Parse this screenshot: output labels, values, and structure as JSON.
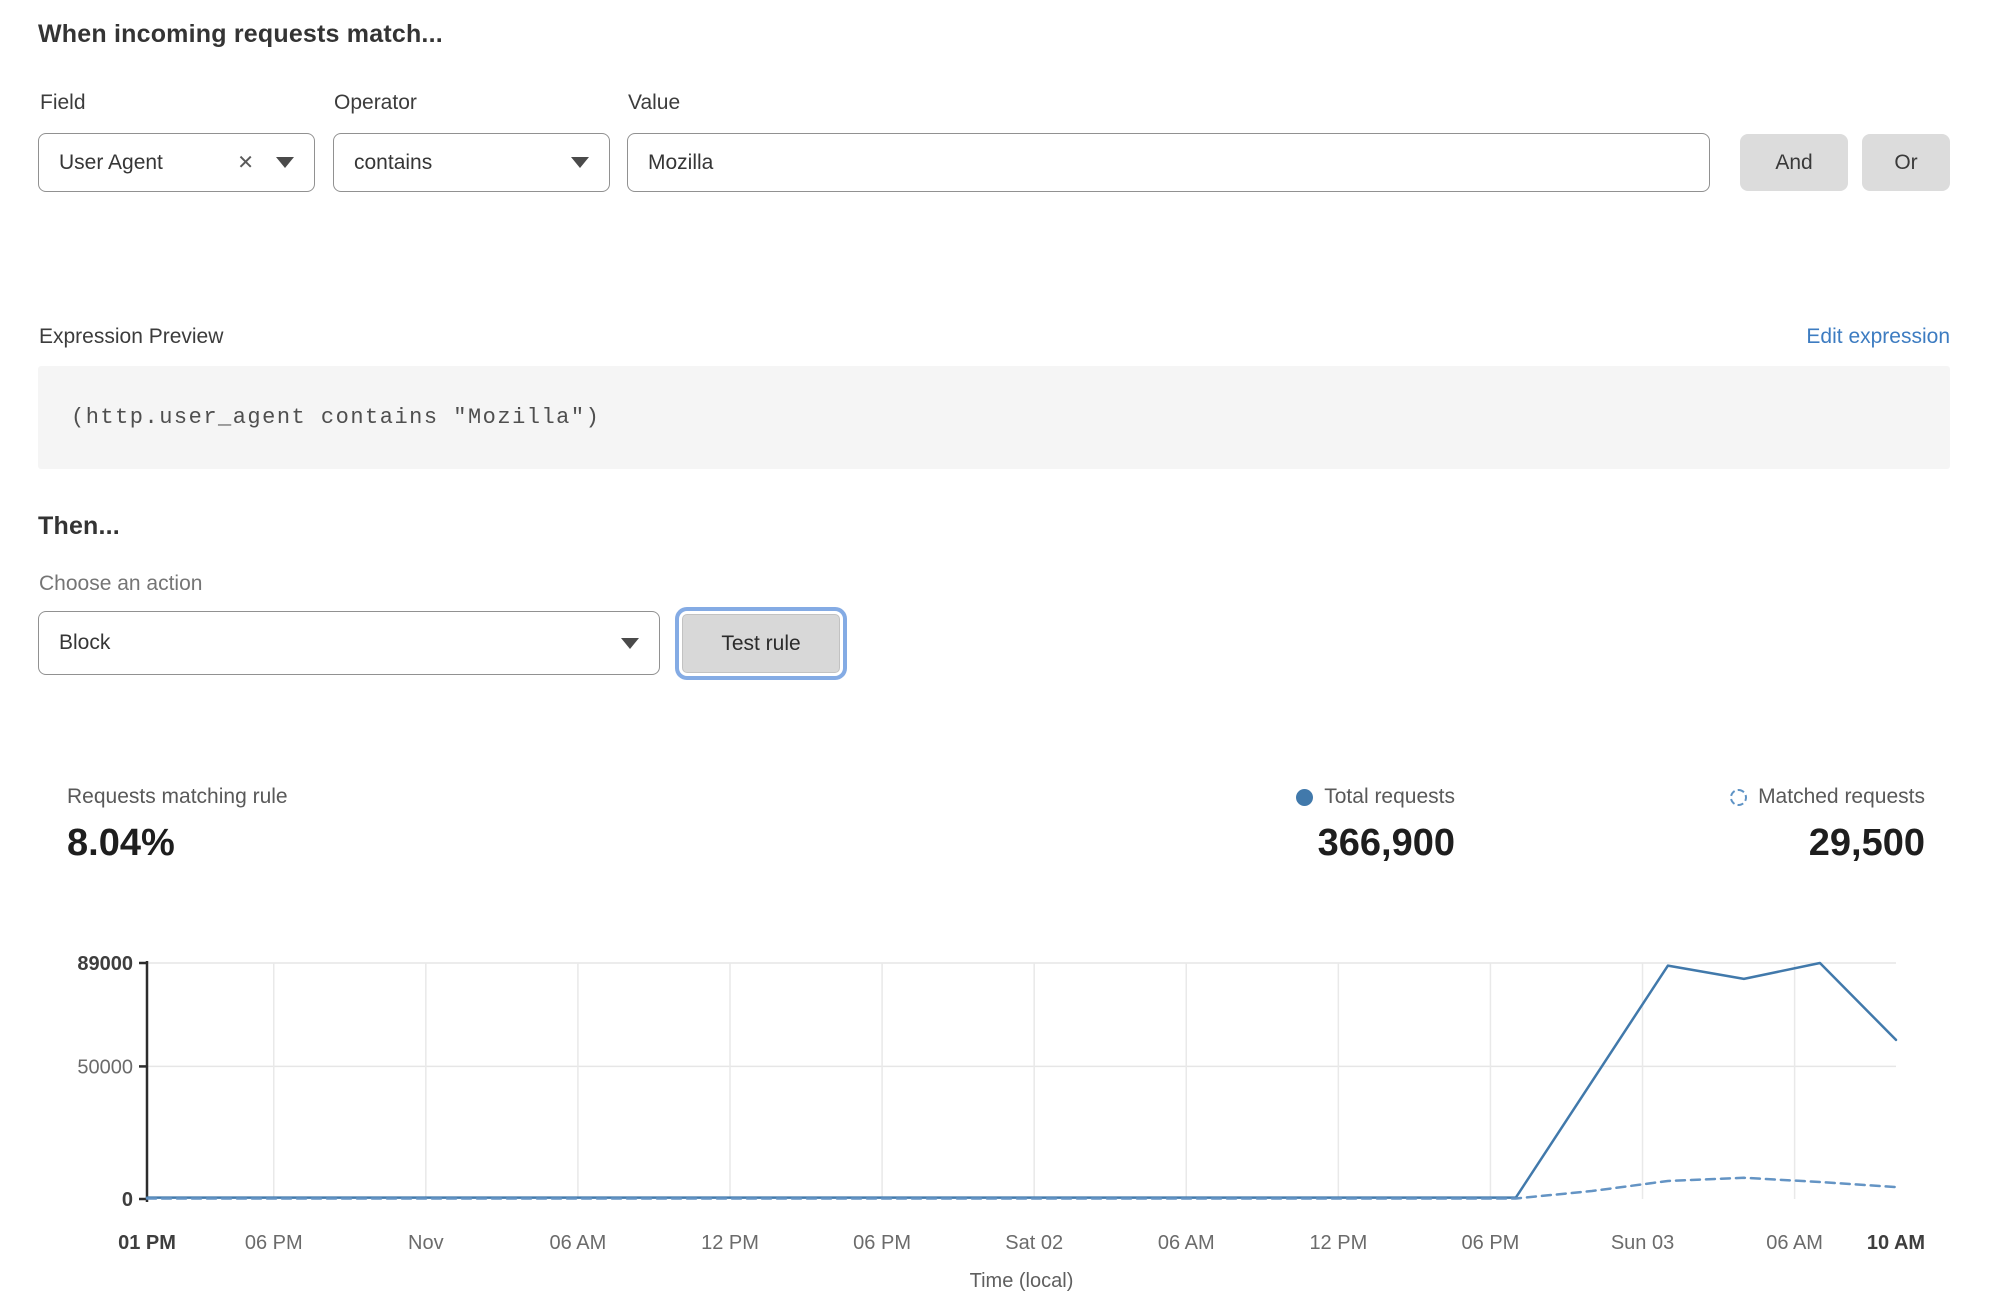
{
  "rule_builder": {
    "heading": "When incoming requests match...",
    "field": {
      "label": "Field",
      "value": "User Agent",
      "clear_icon": "✕"
    },
    "operator": {
      "label": "Operator",
      "value": "contains"
    },
    "value": {
      "label": "Value",
      "value": "Mozilla"
    },
    "and_button": "And",
    "or_button": "Or"
  },
  "expression": {
    "label": "Expression Preview",
    "edit_link": "Edit expression",
    "code": "(http.user_agent contains \"Mozilla\")"
  },
  "then_section": {
    "heading": "Then...",
    "action_label": "Choose an action",
    "action_value": "Block",
    "test_button": "Test rule"
  },
  "stats": {
    "matching": {
      "label": "Requests matching rule",
      "value": "8.04%"
    },
    "total": {
      "label": "Total requests",
      "value": "366,900"
    },
    "matched": {
      "label": "Matched requests",
      "value": "29,500"
    }
  },
  "chart_data": {
    "type": "line",
    "title": "",
    "xlabel": "Time (local)",
    "ylabel": "",
    "ylim": [
      0,
      89000
    ],
    "x_range_hours": [
      0,
      69
    ],
    "x_unit": "hours from Fri 01 PM to Sun 10 AM",
    "grid": true,
    "legend_position": "above-chart-right",
    "y_ticks": [
      {
        "value": 0,
        "label": "0",
        "bold": true
      },
      {
        "value": 50000,
        "label": "50000",
        "bold": false
      },
      {
        "value": 89000,
        "label": "89000",
        "bold": true
      }
    ],
    "x_ticks": [
      {
        "hour": 0,
        "label": "01 PM",
        "bold": true
      },
      {
        "hour": 5,
        "label": "06 PM",
        "bold": false
      },
      {
        "hour": 11,
        "label": "Nov",
        "bold": false
      },
      {
        "hour": 17,
        "label": "06 AM",
        "bold": false
      },
      {
        "hour": 23,
        "label": "12 PM",
        "bold": false
      },
      {
        "hour": 29,
        "label": "06 PM",
        "bold": false
      },
      {
        "hour": 35,
        "label": "Sat 02",
        "bold": false
      },
      {
        "hour": 41,
        "label": "06 AM",
        "bold": false
      },
      {
        "hour": 47,
        "label": "12 PM",
        "bold": false
      },
      {
        "hour": 53,
        "label": "06 PM",
        "bold": false
      },
      {
        "hour": 59,
        "label": "Sun 03",
        "bold": false
      },
      {
        "hour": 65,
        "label": "06 AM",
        "bold": false
      },
      {
        "hour": 69,
        "label": "10 AM",
        "bold": true
      }
    ],
    "series": [
      {
        "name": "Total requests",
        "style": "solid",
        "color": "#4179ab",
        "points": [
          [
            0,
            500
          ],
          [
            54,
            500
          ],
          [
            60,
            88000
          ],
          [
            63,
            83000
          ],
          [
            66,
            89000
          ],
          [
            69,
            60000
          ]
        ]
      },
      {
        "name": "Matched requests",
        "style": "dashed",
        "color": "#6494c4",
        "points": [
          [
            0,
            200
          ],
          [
            54,
            200
          ],
          [
            57,
            3000
          ],
          [
            60,
            6800
          ],
          [
            63,
            8000
          ],
          [
            66,
            6400
          ],
          [
            69,
            4500
          ]
        ]
      }
    ]
  },
  "colors": {
    "accent_blue": "#4179ab",
    "dashed_blue": "#6494c4",
    "link_blue": "#3d7cc1",
    "focus_ring": "#84abe4",
    "button_gray": "#dcdcdc",
    "code_bg": "#f5f5f5",
    "gridline": "#e6e6e6"
  }
}
